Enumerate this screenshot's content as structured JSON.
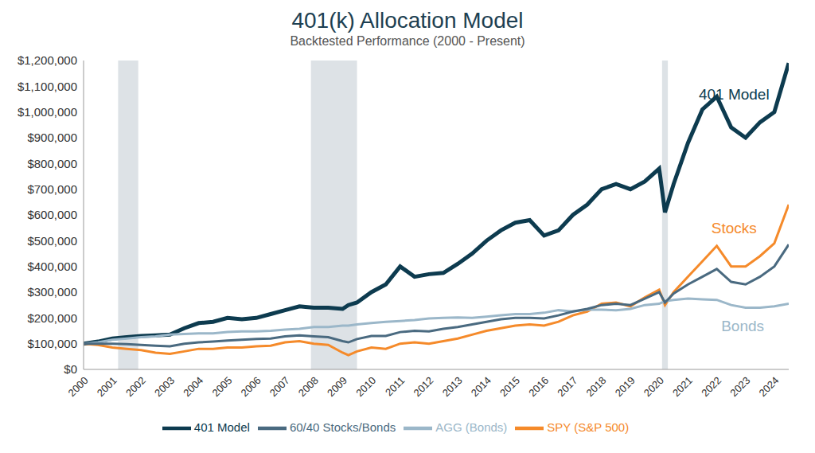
{
  "chart_data": {
    "type": "line",
    "title": "401(k) Allocation Model",
    "subtitle": "Backtested Performance (2000 - Present)",
    "x": [
      2000,
      2000.5,
      2001,
      2001.5,
      2002,
      2002.5,
      2003,
      2003.5,
      2004,
      2004.5,
      2005,
      2005.5,
      2006,
      2006.5,
      2007,
      2007.5,
      2008,
      2008.5,
      2009,
      2009.2,
      2009.5,
      2010,
      2010.5,
      2011,
      2011.5,
      2012,
      2012.5,
      2013,
      2013.5,
      2014,
      2014.5,
      2015,
      2015.5,
      2016,
      2016.5,
      2017,
      2017.5,
      2018,
      2018.5,
      2019,
      2019.5,
      2020,
      2020.2,
      2020.5,
      2021,
      2021.5,
      2022,
      2022.5,
      2023,
      2023.5,
      2024,
      2024.5
    ],
    "series": [
      {
        "name": "401 Model",
        "color": "#0d3b4f",
        "values": [
          100000,
          108000,
          120000,
          125000,
          130000,
          132000,
          135000,
          160000,
          180000,
          185000,
          200000,
          195000,
          200000,
          215000,
          230000,
          245000,
          240000,
          240000,
          235000,
          250000,
          260000,
          300000,
          330000,
          400000,
          360000,
          370000,
          375000,
          410000,
          450000,
          500000,
          540000,
          570000,
          580000,
          520000,
          540000,
          600000,
          640000,
          700000,
          720000,
          700000,
          730000,
          780000,
          610000,
          720000,
          880000,
          1010000,
          1060000,
          940000,
          900000,
          960000,
          1000000,
          1190000
        ]
      },
      {
        "name": "SPY (S&P 500)",
        "color": "#f58a2a",
        "values": [
          100000,
          95000,
          85000,
          80000,
          75000,
          65000,
          60000,
          70000,
          80000,
          80000,
          85000,
          85000,
          90000,
          92000,
          105000,
          110000,
          100000,
          95000,
          65000,
          55000,
          70000,
          85000,
          80000,
          100000,
          105000,
          100000,
          110000,
          120000,
          135000,
          150000,
          160000,
          170000,
          175000,
          170000,
          185000,
          210000,
          225000,
          255000,
          260000,
          245000,
          280000,
          310000,
          250000,
          300000,
          360000,
          420000,
          480000,
          400000,
          400000,
          440000,
          490000,
          640000
        ]
      },
      {
        "name": "AGG (Bonds)",
        "color": "#9bb7c9",
        "values": [
          100000,
          105000,
          115000,
          120000,
          125000,
          128000,
          135000,
          138000,
          140000,
          140000,
          145000,
          148000,
          148000,
          150000,
          155000,
          158000,
          165000,
          165000,
          170000,
          170000,
          175000,
          180000,
          185000,
          188000,
          192000,
          198000,
          200000,
          202000,
          200000,
          205000,
          210000,
          215000,
          215000,
          220000,
          230000,
          225000,
          232000,
          232000,
          230000,
          235000,
          250000,
          255000,
          265000,
          270000,
          275000,
          272000,
          270000,
          250000,
          240000,
          240000,
          245000,
          255000
        ]
      },
      {
        "name": "60/40 Stocks/Bonds",
        "color": "#4a6a80",
        "values": [
          100000,
          100000,
          100000,
          98000,
          95000,
          92000,
          90000,
          100000,
          105000,
          108000,
          112000,
          115000,
          118000,
          120000,
          128000,
          132000,
          128000,
          125000,
          110000,
          105000,
          118000,
          130000,
          130000,
          145000,
          150000,
          148000,
          158000,
          165000,
          175000,
          185000,
          195000,
          200000,
          200000,
          198000,
          210000,
          225000,
          235000,
          250000,
          255000,
          250000,
          275000,
          300000,
          260000,
          295000,
          330000,
          360000,
          390000,
          340000,
          330000,
          360000,
          400000,
          485000
        ]
      }
    ],
    "xlim": [
      2000,
      2024.5
    ],
    "xticks": [
      2000,
      2001,
      2002,
      2003,
      2004,
      2005,
      2006,
      2007,
      2008,
      2009,
      2010,
      2011,
      2012,
      2013,
      2014,
      2015,
      2016,
      2017,
      2018,
      2019,
      2020,
      2021,
      2022,
      2023,
      2024
    ],
    "ylim": [
      0,
      1200000
    ],
    "yticks": [
      {
        "value": 0,
        "label": "$0"
      },
      {
        "value": 100000,
        "label": "$100,000"
      },
      {
        "value": 200000,
        "label": "$200,000"
      },
      {
        "value": 300000,
        "label": "$300,000"
      },
      {
        "value": 400000,
        "label": "$400,000"
      },
      {
        "value": 500000,
        "label": "$500,000"
      },
      {
        "value": 600000,
        "label": "$600,000"
      },
      {
        "value": 700000,
        "label": "$700,000"
      },
      {
        "value": 800000,
        "label": "$800,000"
      },
      {
        "value": 900000,
        "label": "$900,000"
      },
      {
        "value": 1000000,
        "label": "$1,000,000"
      },
      {
        "value": 1100000,
        "label": "$1,100,000"
      },
      {
        "value": 1200000,
        "label": "$1,200,000"
      }
    ],
    "shaded_periods": [
      [
        2001.2,
        2001.9
      ],
      [
        2007.9,
        2009.5
      ],
      [
        2020.1,
        2020.3
      ]
    ],
    "annotations": [
      {
        "text": "401 Model",
        "x": 2022.6,
        "y": 1070000,
        "color": "#0d3b4f"
      },
      {
        "text": "Stocks",
        "x": 2022.6,
        "y": 550000,
        "color": "#f58a2a"
      },
      {
        "text": "Bonds",
        "x": 2022.9,
        "y": 170000,
        "color": "#9bb7c9"
      }
    ],
    "grid": false,
    "legend": "bottom"
  }
}
